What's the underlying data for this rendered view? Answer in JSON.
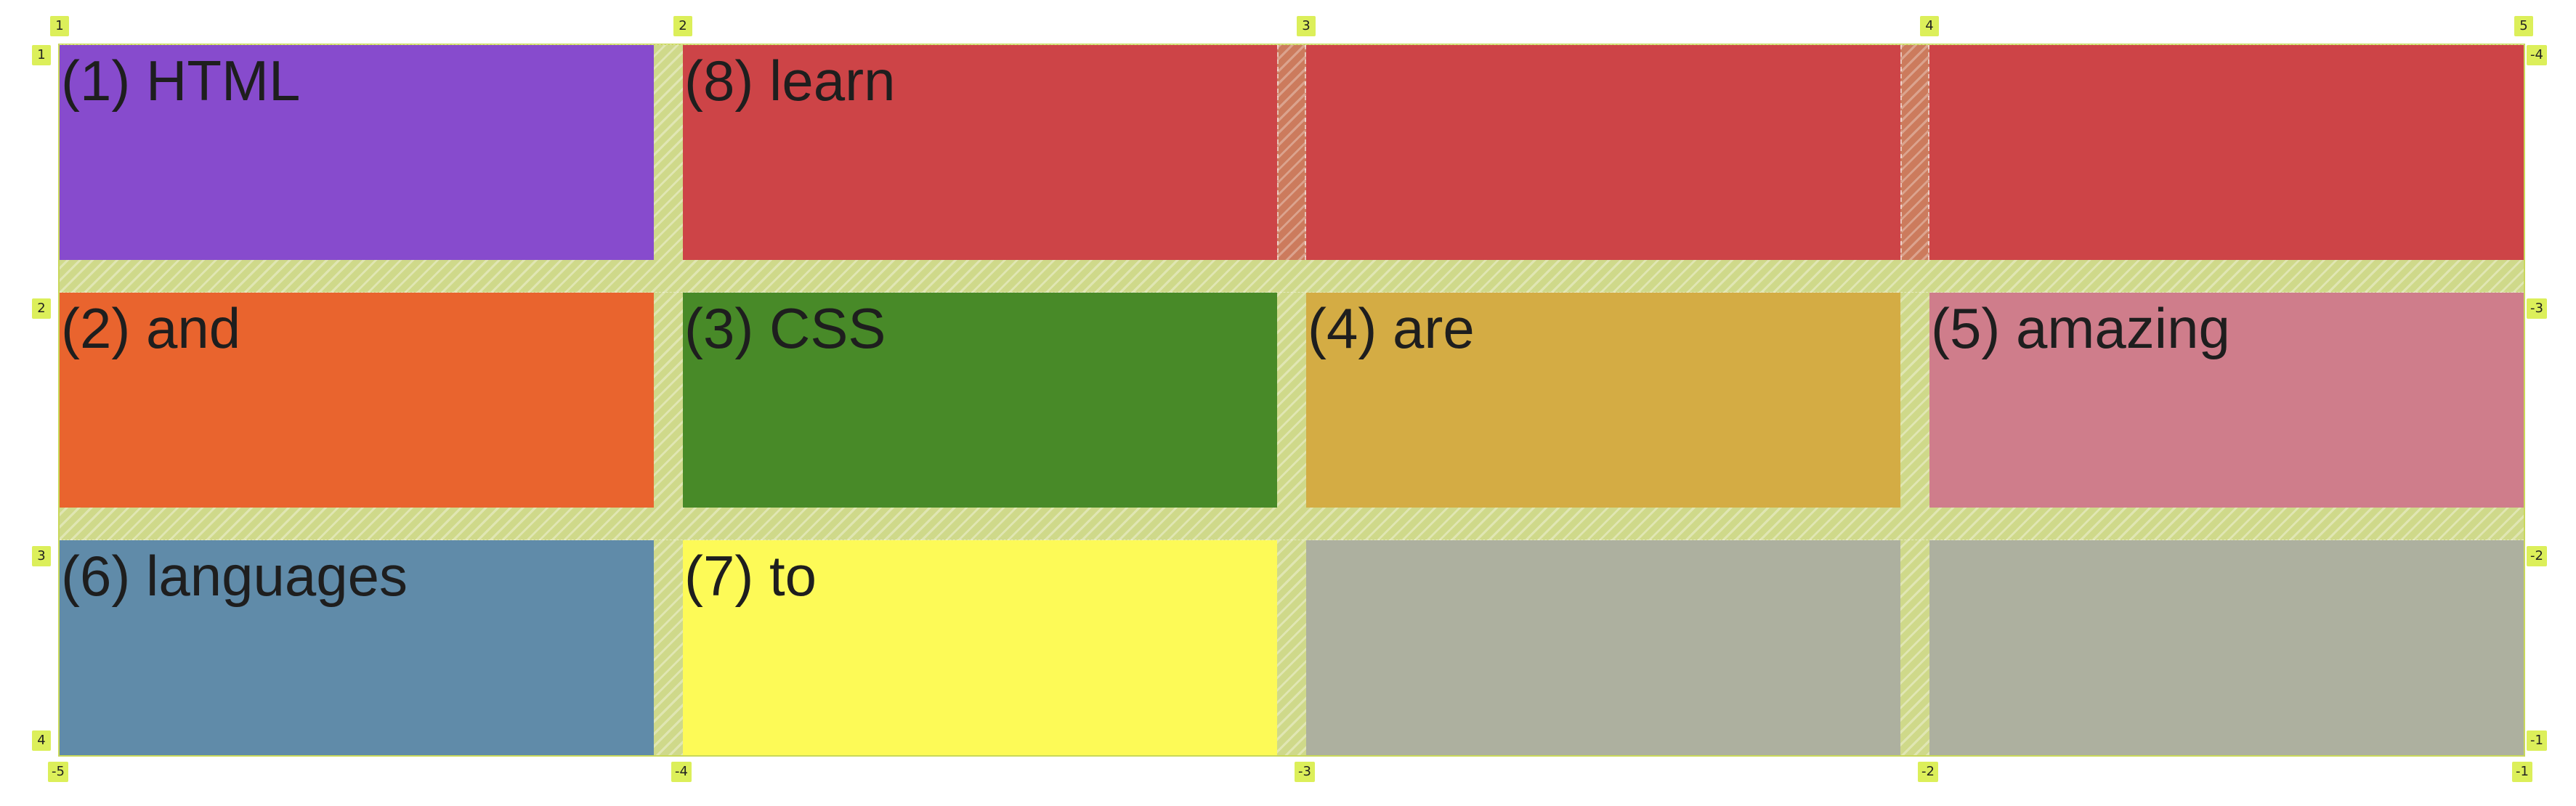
{
  "grid": {
    "items": [
      {
        "name": "grid-item-html",
        "label": "(1) HTML",
        "color": "#874bcd"
      },
      {
        "name": "grid-item-learn",
        "label": "(8) learn",
        "color": "#cd4447"
      },
      {
        "name": "grid-item-and",
        "label": "(2) and",
        "color": "#e9642e"
      },
      {
        "name": "grid-item-css",
        "label": "(3) CSS",
        "color": "#488a28"
      },
      {
        "name": "grid-item-are",
        "label": "(4) are",
        "color": "#d4ac44"
      },
      {
        "name": "grid-item-amazing",
        "label": "(5) amazing",
        "color": "#cf7d8b"
      },
      {
        "name": "grid-item-languages",
        "label": "(6) languages",
        "color": "#608ba9"
      },
      {
        "name": "grid-item-to",
        "label": "(7) to",
        "color": "#fdfa57"
      }
    ],
    "empty_cell_color": "#adb09f",
    "overlay_color": "#cfd98a",
    "badge_color": "#dcef5a",
    "line_numbers": {
      "columns_top": [
        "1",
        "2",
        "3",
        "4",
        "5"
      ],
      "columns_bottom": [
        "-5",
        "-4",
        "-3",
        "-2",
        "-1"
      ],
      "rows_left": [
        "1",
        "2",
        "3",
        "4"
      ],
      "rows_right": [
        "-4",
        "-3",
        "-2",
        "-1"
      ]
    }
  }
}
